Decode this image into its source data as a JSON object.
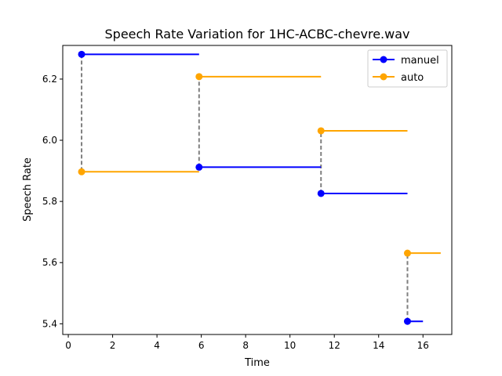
{
  "chart_data": {
    "type": "line",
    "title": "Speech Rate Variation for 1HC-ACBC-chevre.wav",
    "xlabel": "Time",
    "ylabel": "Speech Rate",
    "xlim": [
      -0.25,
      17.3
    ],
    "ylim": [
      5.365,
      6.31
    ],
    "xticks": [
      0,
      2,
      4,
      6,
      8,
      10,
      12,
      14,
      16
    ],
    "yticks": [
      5.4,
      5.6,
      5.8,
      6.0,
      6.2
    ],
    "x_tick_labels": [
      "0",
      "2",
      "4",
      "6",
      "8",
      "10",
      "12",
      "14",
      "16"
    ],
    "y_tick_labels": [
      "5.4",
      "5.6",
      "5.8",
      "6.0",
      "6.2"
    ],
    "grid": false,
    "legend_position": "top-right",
    "connector_color": "#808080",
    "series": [
      {
        "name": "manuel",
        "color": "#0000ff",
        "segments": [
          {
            "start": 0.6,
            "end": 5.9,
            "value": 6.281
          },
          {
            "start": 5.9,
            "end": 11.4,
            "value": 5.912
          },
          {
            "start": 11.4,
            "end": 15.3,
            "value": 5.826
          },
          {
            "start": 15.3,
            "end": 16.0,
            "value": 5.408
          }
        ]
      },
      {
        "name": "auto",
        "color": "#ffa500",
        "segments": [
          {
            "start": 0.6,
            "end": 5.9,
            "value": 5.897
          },
          {
            "start": 5.9,
            "end": 11.4,
            "value": 6.208
          },
          {
            "start": 11.4,
            "end": 15.3,
            "value": 6.031
          },
          {
            "start": 15.3,
            "end": 16.8,
            "value": 5.631
          }
        ]
      }
    ]
  }
}
